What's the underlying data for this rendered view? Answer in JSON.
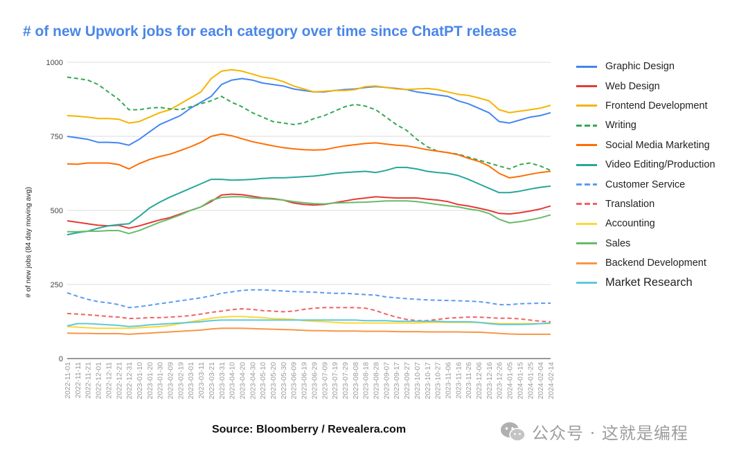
{
  "title": "# of new Upwork jobs for each category over time since ChatPT release",
  "source": "Source: Bloomberry / Revealera.com",
  "watermark": "公众号 · 这就是编程",
  "chart_data": {
    "type": "line",
    "title": "# of new Upwork jobs for each category over time since ChatPT release",
    "xlabel": "",
    "ylabel": "# of new jobs (84 day moving avg)",
    "ylim": [
      0,
      1000
    ],
    "yticks": [
      0,
      250,
      500,
      750,
      1000
    ],
    "grid": true,
    "legend_position": "right",
    "x": [
      "2022-11-01",
      "2022-11-11",
      "2022-11-21",
      "2022-12-01",
      "2022-12-11",
      "2022-12-21",
      "2022-12-31",
      "2023-01-10",
      "2023-01-20",
      "2023-01-30",
      "2023-02-09",
      "2023-02-19",
      "2023-03-01",
      "2023-03-11",
      "2023-03-21",
      "2023-03-31",
      "2023-04-10",
      "2023-04-20",
      "2023-04-30",
      "2023-05-10",
      "2023-05-20",
      "2023-05-30",
      "2023-06-09",
      "2023-06-19",
      "2023-06-29",
      "2023-07-09",
      "2023-07-19",
      "2023-07-29",
      "2023-08-08",
      "2023-08-18",
      "2023-08-28",
      "2023-09-07",
      "2023-09-17",
      "2023-09-27",
      "2023-10-07",
      "2023-10-17",
      "2023-10-27",
      "2023-11-06",
      "2023-11-16",
      "2023-11-26",
      "2023-12-06",
      "2023-12-16",
      "2023-12-26",
      "2024-01-05",
      "2024-01-15",
      "2024-01-25",
      "2024-02-04",
      "2024-02-14"
    ],
    "series": [
      {
        "name": "Graphic Design",
        "color": "#4285f4",
        "dash": "solid",
        "values": [
          750,
          745,
          740,
          730,
          730,
          728,
          720,
          740,
          765,
          790,
          805,
          820,
          845,
          865,
          885,
          925,
          940,
          945,
          940,
          930,
          925,
          920,
          910,
          905,
          900,
          900,
          905,
          908,
          910,
          915,
          918,
          915,
          912,
          908,
          900,
          895,
          890,
          885,
          870,
          860,
          845,
          830,
          800,
          795,
          805,
          815,
          820,
          830
        ]
      },
      {
        "name": "Web Design",
        "color": "#e53935",
        "dash": "solid",
        "values": [
          465,
          460,
          455,
          450,
          448,
          450,
          440,
          448,
          458,
          468,
          476,
          488,
          500,
          512,
          530,
          552,
          555,
          553,
          548,
          542,
          540,
          535,
          525,
          520,
          518,
          520,
          526,
          532,
          538,
          542,
          546,
          544,
          542,
          542,
          542,
          538,
          535,
          530,
          520,
          515,
          508,
          500,
          490,
          488,
          492,
          498,
          505,
          515
        ]
      },
      {
        "name": "Frontend Development",
        "color": "#f4b400",
        "dash": "solid",
        "values": [
          820,
          818,
          815,
          810,
          810,
          808,
          795,
          800,
          815,
          830,
          840,
          860,
          880,
          900,
          945,
          970,
          975,
          970,
          960,
          950,
          945,
          935,
          920,
          910,
          900,
          902,
          905,
          905,
          908,
          918,
          920,
          915,
          910,
          908,
          910,
          912,
          908,
          900,
          892,
          888,
          880,
          870,
          840,
          830,
          835,
          840,
          845,
          855
        ]
      },
      {
        "name": "Writing",
        "color": "#34a853",
        "dash": "dash",
        "values": [
          950,
          945,
          940,
          925,
          900,
          875,
          840,
          840,
          845,
          848,
          843,
          840,
          850,
          860,
          870,
          885,
          865,
          850,
          830,
          815,
          800,
          795,
          790,
          795,
          810,
          820,
          835,
          850,
          858,
          852,
          840,
          815,
          790,
          770,
          740,
          715,
          700,
          695,
          690,
          680,
          670,
          660,
          650,
          640,
          655,
          660,
          650,
          635
        ]
      },
      {
        "name": "Social Media Marketing",
        "color": "#ff6d00",
        "dash": "solid",
        "values": [
          657,
          656,
          660,
          660,
          660,
          655,
          640,
          658,
          672,
          682,
          690,
          702,
          715,
          730,
          750,
          758,
          752,
          742,
          732,
          725,
          718,
          712,
          708,
          705,
          704,
          705,
          712,
          718,
          722,
          726,
          728,
          724,
          720,
          718,
          712,
          705,
          700,
          695,
          688,
          676,
          666,
          650,
          625,
          610,
          615,
          622,
          628,
          632
        ]
      },
      {
        "name": "Video Editing/Production",
        "color": "#26a69a",
        "dash": "solid",
        "values": [
          418,
          425,
          430,
          440,
          448,
          452,
          455,
          480,
          508,
          528,
          545,
          560,
          575,
          590,
          605,
          605,
          602,
          603,
          605,
          608,
          610,
          610,
          612,
          614,
          616,
          620,
          625,
          628,
          630,
          632,
          628,
          635,
          645,
          645,
          640,
          632,
          628,
          625,
          618,
          605,
          590,
          575,
          560,
          560,
          565,
          572,
          578,
          582
        ]
      },
      {
        "name": "Customer Service",
        "color": "#5b9bf0",
        "dash": "dash",
        "values": [
          222,
          210,
          200,
          192,
          188,
          182,
          172,
          175,
          180,
          185,
          190,
          195,
          200,
          205,
          212,
          220,
          225,
          230,
          232,
          232,
          230,
          228,
          226,
          225,
          224,
          222,
          220,
          220,
          218,
          216,
          214,
          208,
          205,
          202,
          200,
          198,
          197,
          196,
          195,
          194,
          192,
          188,
          182,
          182,
          185,
          186,
          187,
          187
        ]
      },
      {
        "name": "Translation",
        "color": "#f06262",
        "dash": "dash",
        "values": [
          152,
          150,
          148,
          145,
          142,
          140,
          135,
          136,
          138,
          138,
          140,
          142,
          145,
          150,
          156,
          160,
          165,
          168,
          166,
          162,
          160,
          158,
          160,
          166,
          170,
          172,
          172,
          172,
          172,
          170,
          162,
          150,
          140,
          132,
          128,
          128,
          132,
          136,
          138,
          140,
          140,
          138,
          136,
          136,
          134,
          130,
          126,
          124
        ]
      },
      {
        "name": "Accounting",
        "color": "#fdd835",
        "dash": "solid",
        "values": [
          108,
          106,
          104,
          102,
          102,
          102,
          102,
          104,
          106,
          108,
          112,
          118,
          124,
          130,
          136,
          140,
          142,
          142,
          140,
          138,
          135,
          134,
          132,
          128,
          126,
          124,
          122,
          120,
          120,
          120,
          120,
          120,
          120,
          120,
          120,
          122,
          122,
          122,
          122,
          122,
          122,
          120,
          118,
          118,
          118,
          118,
          118,
          118
        ]
      },
      {
        "name": "Sales",
        "color": "#66bb6a",
        "dash": "solid",
        "values": [
          428,
          428,
          430,
          430,
          432,
          432,
          422,
          432,
          446,
          460,
          472,
          485,
          500,
          512,
          534,
          544,
          546,
          546,
          542,
          540,
          538,
          535,
          530,
          526,
          523,
          522,
          525,
          526,
          527,
          528,
          530,
          532,
          532,
          532,
          530,
          525,
          520,
          516,
          512,
          505,
          500,
          490,
          470,
          458,
          462,
          468,
          475,
          485
        ]
      },
      {
        "name": "Backend Development",
        "color": "#f79646",
        "dash": "solid",
        "values": [
          86,
          85,
          85,
          84,
          84,
          84,
          82,
          84,
          86,
          88,
          90,
          92,
          94,
          96,
          100,
          102,
          102,
          102,
          101,
          100,
          99,
          98,
          97,
          95,
          94,
          94,
          93,
          93,
          93,
          92,
          92,
          92,
          91,
          91,
          91,
          90,
          90,
          90,
          90,
          89,
          89,
          87,
          85,
          83,
          82,
          82,
          82,
          82
        ]
      },
      {
        "name": "Market Research",
        "color": "#5ec9d8",
        "dash": "solid",
        "values": [
          110,
          118,
          118,
          116,
          114,
          112,
          108,
          110,
          114,
          116,
          118,
          120,
          122,
          124,
          128,
          130,
          130,
          130,
          130,
          130,
          130,
          130,
          130,
          130,
          130,
          130,
          130,
          130,
          130,
          128,
          128,
          128,
          126,
          126,
          126,
          126,
          126,
          124,
          124,
          124,
          122,
          118,
          115,
          115,
          115,
          116,
          118,
          120
        ]
      }
    ]
  }
}
